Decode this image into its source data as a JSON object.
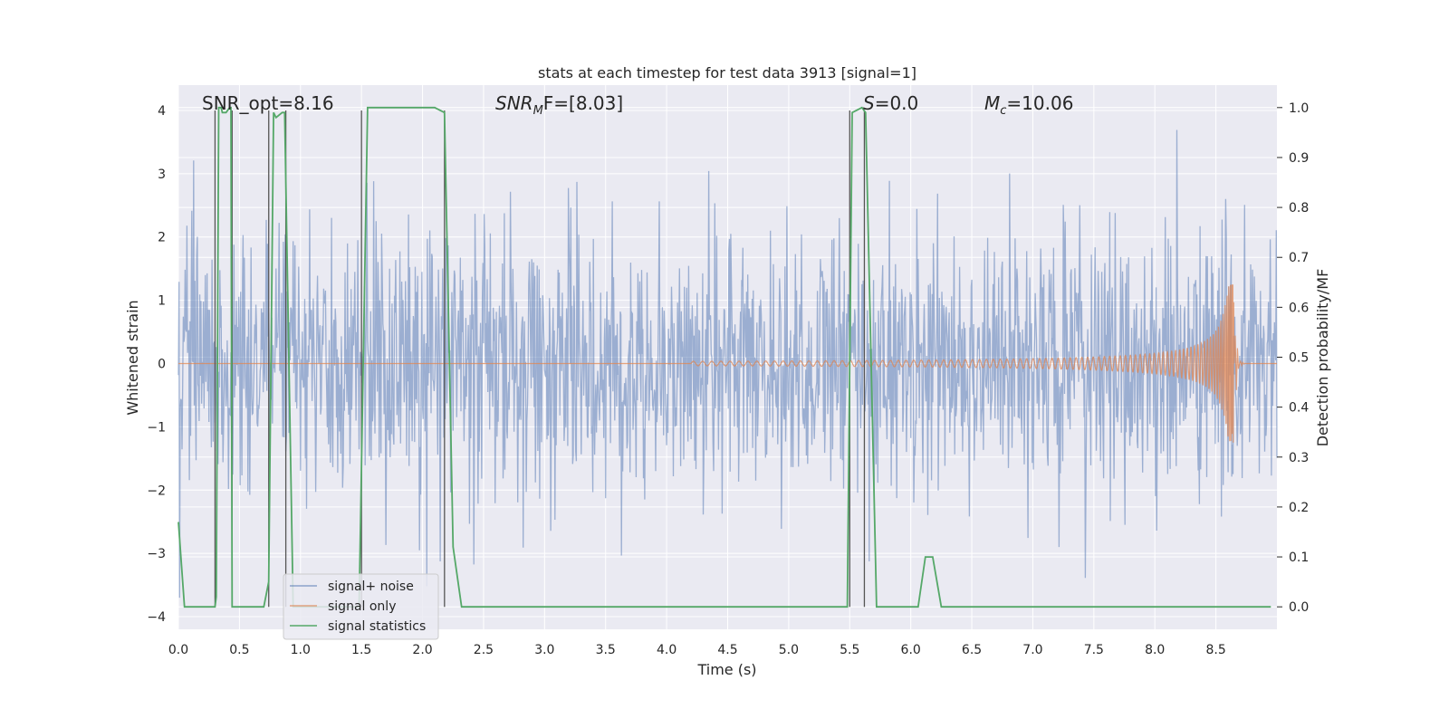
{
  "chart_data": {
    "type": "line",
    "title": "stats at each timestep for test data 3913 [signal=1]",
    "xlabel": "Time (s)",
    "ylabel": "Whitened strain",
    "y2label": "Detection probability/MF",
    "xlim": [
      0.0,
      9.0
    ],
    "ylim": [
      -4.2,
      4.4
    ],
    "y2lim": [
      -0.045,
      1.045
    ],
    "x_ticks": [
      "0.0",
      "0.5",
      "1.0",
      "1.5",
      "2.0",
      "2.5",
      "3.0",
      "3.5",
      "4.0",
      "4.5",
      "5.0",
      "5.5",
      "6.0",
      "6.5",
      "7.0",
      "7.5",
      "8.0",
      "8.5"
    ],
    "y_ticks": [
      "−4",
      "−3",
      "−2",
      "−1",
      "0",
      "1",
      "2",
      "3",
      "4"
    ],
    "y2_ticks": [
      "0.0",
      "0.1",
      "0.2",
      "0.3",
      "0.4",
      "0.5",
      "0.6",
      "0.7",
      "0.8",
      "0.9",
      "1.0"
    ],
    "grid": true,
    "legend_position": "lower-left",
    "annotations": {
      "snr_opt": "SNR_opt=8.16",
      "snr_mf_base": "SNR",
      "snr_mf_sub": "M",
      "snr_mf_rest": "F=[8.03]",
      "s_var": "S",
      "s_rest": "=0.0",
      "mc_var": "M",
      "mc_sub": "c",
      "mc_rest": "=10.06"
    },
    "series": [
      {
        "name": "signal+ noise",
        "color": "#4c72b0",
        "opacity": 0.5,
        "description_values": {
          "envelope_typical": [
            -2.2,
            2.2
          ],
          "peaks_max": 3.9,
          "peaks_min": -3.7
        },
        "x_range": [
          0.0,
          9.0
        ]
      },
      {
        "name": "signal only",
        "color": "#dd8452",
        "chirp": {
          "start": 4.2,
          "merger": 8.65,
          "end": 9.0,
          "peak_amplitude": 1.25
        }
      },
      {
        "name": "signal statistics",
        "color": "#55a868",
        "axis": "right",
        "points": [
          [
            0.0,
            0.17
          ],
          [
            0.05,
            0.0
          ],
          [
            0.3,
            0.0
          ],
          [
            0.31,
            0.02
          ],
          [
            0.33,
            1.0
          ],
          [
            0.35,
            1.0
          ],
          [
            0.36,
            0.99
          ],
          [
            0.39,
            0.99
          ],
          [
            0.42,
            1.0
          ],
          [
            0.43,
            1.0
          ],
          [
            0.44,
            0.0
          ],
          [
            0.5,
            0.0
          ],
          [
            0.55,
            0.0
          ],
          [
            0.7,
            0.0
          ],
          [
            0.74,
            0.05
          ],
          [
            0.78,
            0.99
          ],
          [
            0.8,
            0.98
          ],
          [
            0.85,
            0.99
          ],
          [
            0.87,
            0.99
          ],
          [
            0.94,
            0.0
          ],
          [
            1.48,
            0.0
          ],
          [
            1.55,
            1.0
          ],
          [
            1.6,
            1.0
          ],
          [
            2.1,
            1.0
          ],
          [
            2.18,
            0.99
          ],
          [
            2.25,
            0.12
          ],
          [
            2.32,
            0.0
          ],
          [
            5.48,
            0.0
          ],
          [
            5.52,
            0.99
          ],
          [
            5.6,
            1.0
          ],
          [
            5.63,
            0.99
          ],
          [
            5.72,
            0.0
          ],
          [
            5.8,
            0.0
          ],
          [
            6.06,
            0.0
          ],
          [
            6.12,
            0.1
          ],
          [
            6.18,
            0.1
          ],
          [
            6.25,
            0.0
          ],
          [
            8.95,
            0.0
          ]
        ]
      }
    ],
    "vertical_lines": [
      0.3,
      0.44,
      0.74,
      0.88,
      1.5,
      2.18,
      5.5,
      5.62
    ]
  },
  "legend": {
    "items": [
      {
        "label": "signal+ noise",
        "color": "#4c72b0"
      },
      {
        "label": "signal only",
        "color": "#dd8452"
      },
      {
        "label": "signal statistics",
        "color": "#55a868"
      }
    ]
  }
}
